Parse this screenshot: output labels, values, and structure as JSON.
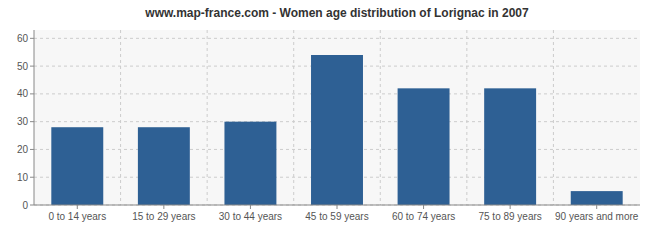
{
  "chart_data": {
    "type": "bar",
    "title": "www.map-france.com - Women age distribution of Lorignac in 2007",
    "categories": [
      "0 to 14 years",
      "15 to 29 years",
      "30 to 44 years",
      "45 to 59 years",
      "60 to 74 years",
      "75 to 89 years",
      "90 years and more"
    ],
    "values": [
      28,
      28,
      30,
      54,
      42,
      42,
      5
    ],
    "color": "#2E6094",
    "ylim": [
      0,
      63
    ],
    "yticks": [
      0,
      10,
      20,
      30,
      40,
      50,
      60
    ],
    "grid": true
  }
}
